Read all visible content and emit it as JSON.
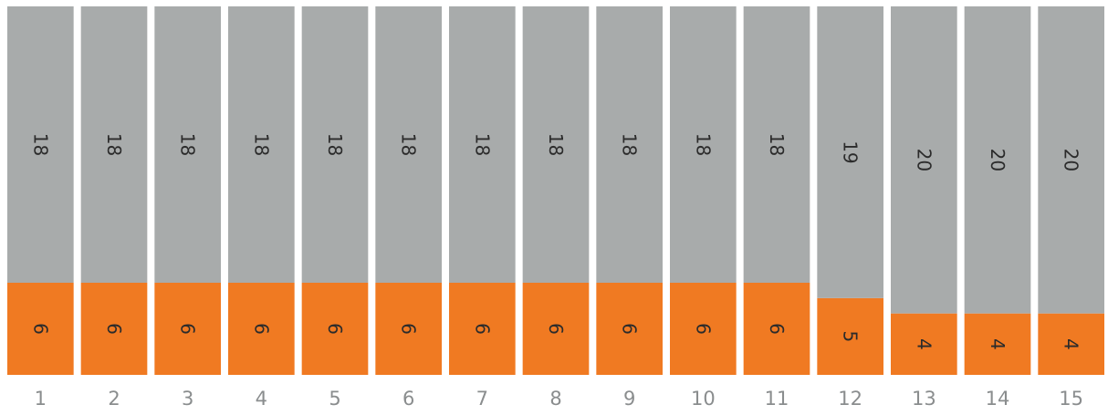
{
  "chart_data": {
    "type": "bar",
    "stacked": true,
    "categories": [
      "1",
      "2",
      "3",
      "4",
      "5",
      "6",
      "7",
      "8",
      "9",
      "10",
      "11",
      "12",
      "13",
      "14",
      "15"
    ],
    "series": [
      {
        "color": "#f07a22",
        "values": [
          6,
          6,
          6,
          6,
          6,
          6,
          6,
          6,
          6,
          6,
          6,
          5,
          4,
          4,
          4
        ]
      },
      {
        "color": "#a8abab",
        "values": [
          18,
          18,
          18,
          18,
          18,
          18,
          18,
          18,
          18,
          18,
          18,
          19,
          20,
          20,
          20
        ]
      }
    ],
    "title": "",
    "xlabel": "",
    "ylabel": "",
    "ylim": [
      0,
      24
    ],
    "grid": false,
    "legend": "none",
    "data_labels": "inside, rotated 90°"
  }
}
